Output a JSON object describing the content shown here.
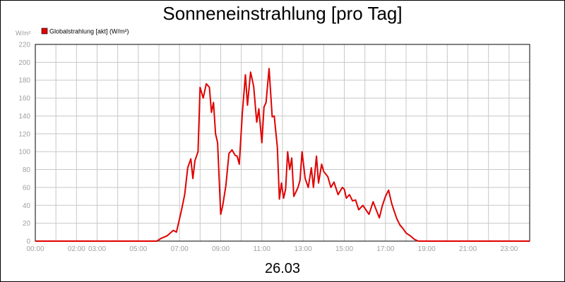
{
  "chart_data": {
    "type": "line",
    "title": "Sonneneinstrahlung [pro Tag]",
    "date_label": "26.03",
    "y_unit": "W/m²",
    "ylim": [
      0,
      220
    ],
    "y_ticks": [
      0,
      20,
      40,
      60,
      80,
      100,
      120,
      140,
      160,
      180,
      200,
      220
    ],
    "xlim": [
      0,
      24
    ],
    "x_tick_labels": [
      {
        "hour": 0,
        "label": "00:00"
      },
      {
        "hour": 2,
        "label": "02:00"
      },
      {
        "hour": 3,
        "label": "03:00"
      },
      {
        "hour": 5,
        "label": "05:00"
      },
      {
        "hour": 7,
        "label": "07:00"
      },
      {
        "hour": 9,
        "label": "09:00"
      },
      {
        "hour": 11,
        "label": "11:00"
      },
      {
        "hour": 13,
        "label": "13:00"
      },
      {
        "hour": 15,
        "label": "15:00"
      },
      {
        "hour": 17,
        "label": "17:00"
      },
      {
        "hour": 19,
        "label": "19:00"
      },
      {
        "hour": 21,
        "label": "21:00"
      },
      {
        "hour": 23,
        "label": "23:00"
      }
    ],
    "grid": true,
    "legend_position": "top-left",
    "series": [
      {
        "name": "Globalstrahlung [akt] (W/m²)",
        "color": "#e00000",
        "x": [
          0,
          5.9,
          6.1,
          6.4,
          6.7,
          6.85,
          7.0,
          7.1,
          7.25,
          7.4,
          7.55,
          7.65,
          7.75,
          7.9,
          8.0,
          8.15,
          8.3,
          8.45,
          8.55,
          8.65,
          8.75,
          8.85,
          9.0,
          9.1,
          9.25,
          9.4,
          9.55,
          9.7,
          9.8,
          9.9,
          10.05,
          10.2,
          10.3,
          10.45,
          10.6,
          10.75,
          10.85,
          11.0,
          11.1,
          11.2,
          11.35,
          11.5,
          11.6,
          11.75,
          11.85,
          11.95,
          12.05,
          12.15,
          12.25,
          12.35,
          12.45,
          12.55,
          12.65,
          12.75,
          12.85,
          12.95,
          13.1,
          13.25,
          13.4,
          13.5,
          13.65,
          13.75,
          13.9,
          14.0,
          14.2,
          14.35,
          14.5,
          14.7,
          14.9,
          15.0,
          15.1,
          15.25,
          15.4,
          15.55,
          15.7,
          15.9,
          16.05,
          16.2,
          16.4,
          16.55,
          16.7,
          16.85,
          17.0,
          17.15,
          17.3,
          17.4,
          17.55,
          17.7,
          17.85,
          18.0,
          18.2,
          18.4,
          18.6,
          18.8,
          19.0,
          24.0
        ],
        "values": [
          0,
          0,
          3,
          6,
          12,
          10,
          25,
          35,
          52,
          82,
          92,
          70,
          90,
          100,
          172,
          160,
          176,
          172,
          144,
          155,
          120,
          110,
          30,
          40,
          62,
          98,
          102,
          96,
          95,
          86,
          143,
          186,
          152,
          189,
          173,
          133,
          148,
          110,
          150,
          155,
          193,
          139,
          140,
          105,
          47,
          65,
          48,
          58,
          100,
          80,
          93,
          50,
          55,
          60,
          68,
          100,
          70,
          60,
          82,
          60,
          95,
          65,
          86,
          78,
          72,
          60,
          66,
          52,
          60,
          58,
          48,
          52,
          45,
          46,
          35,
          40,
          35,
          30,
          44,
          35,
          26,
          40,
          50,
          57,
          42,
          35,
          25,
          18,
          14,
          9,
          6,
          2,
          0,
          0,
          0,
          0
        ]
      }
    ]
  }
}
